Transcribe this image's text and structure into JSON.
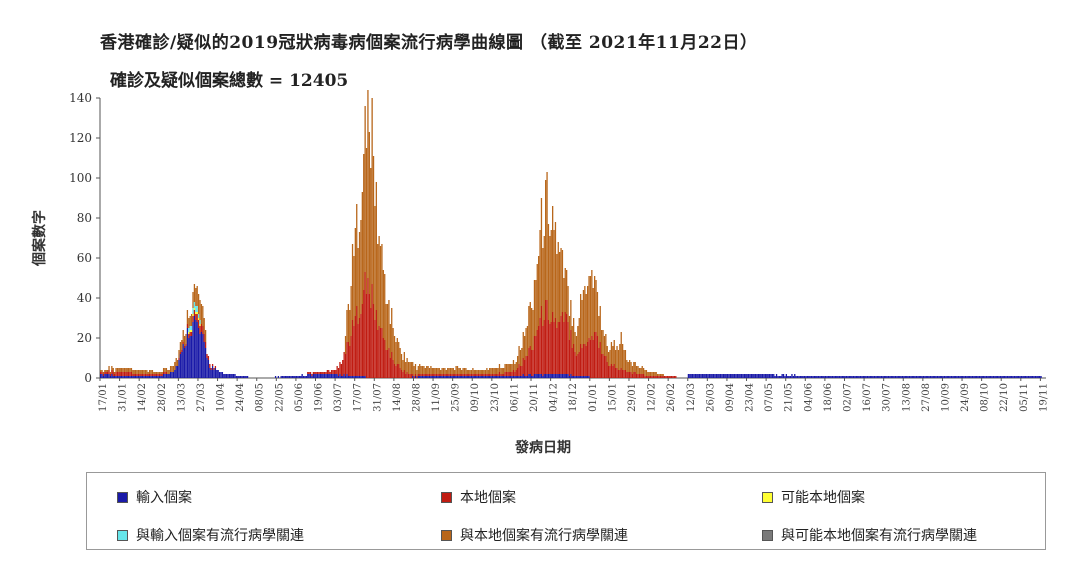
{
  "title": "香港確診/疑似的2019冠狀病毒病個案流行病學曲線圖 （截至 2021年11月22日）",
  "subtitle": "確診及疑似個案總數 = 12405",
  "colors": {
    "imported": "#1a1aa8",
    "local": "#c01c12",
    "possible_local": "#ffff33",
    "epi_imported": "#66e6ea",
    "epi_local": "#b8661a",
    "epi_possible_local": "#7a7a7a"
  },
  "legend": [
    {
      "key": "imported",
      "label": "輸入個案"
    },
    {
      "key": "local",
      "label": "本地個案"
    },
    {
      "key": "possible_local",
      "label": "可能本地個案"
    },
    {
      "key": "epi_imported",
      "label": "與輸入個案有流行病學關連"
    },
    {
      "key": "epi_local",
      "label": "與本地個案有流行病學關連"
    },
    {
      "key": "epi_possible_local",
      "label": "與可能本地個案有流行病學關連"
    }
  ],
  "chart_data": {
    "type": "bar",
    "stacked": true,
    "title": "香港確診/疑似的2019冠狀病毒病個案流行病學曲線圖 （截至 2021年11月22日）",
    "subtitle": "確診及疑似個案總數 = 12405",
    "xlabel": "發病日期",
    "ylabel": "個案數字",
    "ylim": [
      0,
      140
    ],
    "yticks": [
      0,
      20,
      40,
      60,
      80,
      100,
      120,
      140
    ],
    "grid": false,
    "legend_position": "bottom",
    "x_tick_labels": [
      "17/01",
      "31/01",
      "14/02",
      "28/02",
      "13/03",
      "27/03",
      "10/04",
      "24/04",
      "08/05",
      "22/05",
      "05/06",
      "19/06",
      "03/07",
      "17/07",
      "31/07",
      "14/08",
      "28/08",
      "11/09",
      "25/09",
      "09/10",
      "23/10",
      "06/11",
      "20/11",
      "04/12",
      "18/12",
      "01/01",
      "15/01",
      "29/01",
      "12/02",
      "26/02",
      "12/03",
      "26/03",
      "09/04",
      "23/04",
      "07/05",
      "21/05",
      "04/06",
      "18/06",
      "02/07",
      "16/07",
      "30/07",
      "13/08",
      "27/08",
      "10/09",
      "24/09",
      "08/10",
      "22/10",
      "05/11",
      "19/11"
    ],
    "segments": [
      {
        "name": "輸入個案",
        "key": "imported",
        "points": [
          [
            "17/01",
            2
          ],
          [
            "31/01",
            1
          ],
          [
            "14/02",
            1
          ],
          [
            "28/02",
            1
          ],
          [
            "10/03",
            4
          ],
          [
            "15/03",
            12
          ],
          [
            "20/03",
            25
          ],
          [
            "25/03",
            28
          ],
          [
            "28/03",
            22
          ],
          [
            "01/04",
            14
          ],
          [
            "04/04",
            6
          ],
          [
            "10/04",
            3
          ],
          [
            "24/04",
            1
          ],
          [
            "08/05",
            0
          ],
          [
            "05/06",
            1
          ],
          [
            "19/06",
            2
          ],
          [
            "03/07",
            2
          ],
          [
            "17/07",
            1
          ],
          [
            "31/07",
            0
          ],
          [
            "14/08",
            0
          ],
          [
            "11/09",
            1
          ],
          [
            "09/10",
            1
          ],
          [
            "06/11",
            1
          ],
          [
            "04/12",
            2
          ],
          [
            "01/01",
            1
          ],
          [
            "12/03",
            2
          ],
          [
            "09/04",
            2
          ],
          [
            "07/05",
            2
          ],
          [
            "04/06",
            1
          ],
          [
            "02/07",
            1
          ],
          [
            "30/07",
            1
          ],
          [
            "27/08",
            1
          ],
          [
            "24/09",
            1
          ],
          [
            "22/10",
            1
          ],
          [
            "19/11",
            1
          ]
        ]
      },
      {
        "name": "本地個案",
        "key": "local",
        "points": [
          [
            "17/01",
            1
          ],
          [
            "31/01",
            2
          ],
          [
            "14/02",
            1
          ],
          [
            "28/02",
            1
          ],
          [
            "10/03",
            0
          ],
          [
            "20/03",
            2
          ],
          [
            "28/03",
            4
          ],
          [
            "04/04",
            2
          ],
          [
            "10/04",
            0
          ],
          [
            "05/06",
            0
          ],
          [
            "03/07",
            2
          ],
          [
            "10/07",
            12
          ],
          [
            "17/07",
            28
          ],
          [
            "24/07",
            45
          ],
          [
            "28/07",
            42
          ],
          [
            "31/07",
            32
          ],
          [
            "07/08",
            18
          ],
          [
            "14/08",
            8
          ],
          [
            "21/08",
            3
          ],
          [
            "28/08",
            1
          ],
          [
            "11/09",
            1
          ],
          [
            "25/09",
            1
          ],
          [
            "09/10",
            1
          ],
          [
            "23/10",
            1
          ],
          [
            "06/11",
            2
          ],
          [
            "13/11",
            6
          ],
          [
            "20/11",
            14
          ],
          [
            "25/11",
            25
          ],
          [
            "29/11",
            32
          ],
          [
            "04/12",
            30
          ],
          [
            "09/12",
            24
          ],
          [
            "14/12",
            28
          ],
          [
            "18/12",
            20
          ],
          [
            "22/12",
            12
          ],
          [
            "28/12",
            16
          ],
          [
            "01/01",
            20
          ],
          [
            "06/01",
            22
          ],
          [
            "10/01",
            14
          ],
          [
            "15/01",
            7
          ],
          [
            "22/01",
            5
          ],
          [
            "29/01",
            3
          ],
          [
            "12/02",
            1
          ],
          [
            "26/02",
            1
          ],
          [
            "12/03",
            0
          ]
        ]
      },
      {
        "name": "可能本地個案",
        "key": "possible_local",
        "points": [
          [
            "20/03",
            1
          ],
          [
            "28/03",
            1
          ]
        ]
      },
      {
        "name": "與輸入個案有流行病學關連",
        "key": "epi_imported",
        "points": [
          [
            "20/03",
            2
          ],
          [
            "25/03",
            3
          ],
          [
            "28/03",
            2
          ]
        ]
      },
      {
        "name": "與本地個案有流行病學關連",
        "key": "epi_local",
        "points": [
          [
            "17/01",
            1
          ],
          [
            "31/01",
            2
          ],
          [
            "14/02",
            2
          ],
          [
            "28/02",
            1
          ],
          [
            "20/03",
            6
          ],
          [
            "25/03",
            9
          ],
          [
            "28/03",
            10
          ],
          [
            "01/04",
            6
          ],
          [
            "10/07",
            10
          ],
          [
            "17/07",
            40
          ],
          [
            "22/07",
            62
          ],
          [
            "26/07",
            82
          ],
          [
            "28/07",
            85
          ],
          [
            "31/07",
            62
          ],
          [
            "04/08",
            40
          ],
          [
            "10/08",
            22
          ],
          [
            "17/08",
            10
          ],
          [
            "24/08",
            6
          ],
          [
            "31/08",
            4
          ],
          [
            "14/09",
            3
          ],
          [
            "28/09",
            3
          ],
          [
            "12/10",
            2
          ],
          [
            "26/10",
            3
          ],
          [
            "09/11",
            5
          ],
          [
            "16/11",
            14
          ],
          [
            "23/11",
            30
          ],
          [
            "27/11",
            45
          ],
          [
            "02/12",
            56
          ],
          [
            "06/12",
            48
          ],
          [
            "10/12",
            33
          ],
          [
            "14/12",
            20
          ],
          [
            "18/12",
            14
          ],
          [
            "22/12",
            12
          ],
          [
            "26/12",
            25
          ],
          [
            "30/12",
            32
          ],
          [
            "02/01",
            35
          ],
          [
            "06/01",
            24
          ],
          [
            "10/01",
            14
          ],
          [
            "14/01",
            8
          ],
          [
            "19/01",
            10
          ],
          [
            "24/01",
            15
          ],
          [
            "28/01",
            6
          ],
          [
            "02/02",
            4
          ],
          [
            "09/02",
            3
          ],
          [
            "16/02",
            2
          ],
          [
            "23/02",
            1
          ]
        ]
      }
    ]
  }
}
